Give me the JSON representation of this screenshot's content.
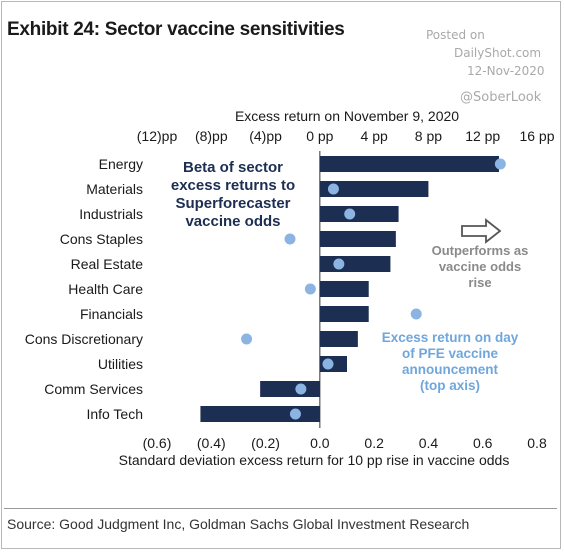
{
  "title": "Exhibit 24: Sector vaccine sensitivities",
  "watermark": {
    "line1": "Posted on",
    "line2": "DailyShot.com",
    "line3": "12-Nov-2020",
    "line4": "@SoberLook"
  },
  "source": "Source: Good Judgment Inc, Goldman Sachs Global Investment Research",
  "colors": {
    "bar": "#1c2e52",
    "dot": "#8cb4e2",
    "annot_dark": "#1c2e52",
    "annot_light": "#6fa6dc",
    "annot_grey": "#8a8a8a"
  },
  "chart_data": {
    "type": "bar",
    "orientation": "horizontal",
    "categories": [
      "Energy",
      "Materials",
      "Industrials",
      "Cons Staples",
      "Real Estate",
      "Health Care",
      "Financials",
      "Cons Discretionary",
      "Utilities",
      "Comm Services",
      "Info Tech"
    ],
    "series": [
      {
        "values": [
          0.66,
          0.4,
          0.29,
          0.28,
          0.26,
          0.18,
          0.18,
          0.14,
          0.1,
          -0.22,
          -0.44
        ]
      },
      {
        "values": [
          13.3,
          1.0,
          2.2,
          -2.2,
          1.4,
          -0.7,
          7.1,
          -5.4,
          0.6,
          -1.4,
          -1.8
        ]
      }
    ],
    "x_bottom": {
      "label": "Standard deviation excess return for 10 pp rise in vaccine odds",
      "range": [
        -0.6,
        0.8
      ],
      "ticks": [
        "(0.6)",
        "(0.4)",
        "(0.2)",
        "0.0",
        "0.2",
        "0.4",
        "0.6",
        "0.8"
      ]
    },
    "x_top": {
      "label": "Excess return on November 9, 2020",
      "range": [
        -12,
        16
      ],
      "ticks": [
        "(12)pp",
        "(8)pp",
        "(4)pp",
        "0 pp",
        "4 pp",
        "8 pp",
        "12 pp",
        "16 pp"
      ]
    },
    "annotations": {
      "beta": [
        "Beta of sector",
        "excess returns to",
        "Superforecaster",
        "vaccine odds"
      ],
      "outperforms": [
        "Outperforms as",
        "vaccine odds",
        "rise"
      ],
      "excess": [
        "Excess return on day",
        "of PFE vaccine",
        "announcement",
        "(top axis)"
      ]
    }
  }
}
